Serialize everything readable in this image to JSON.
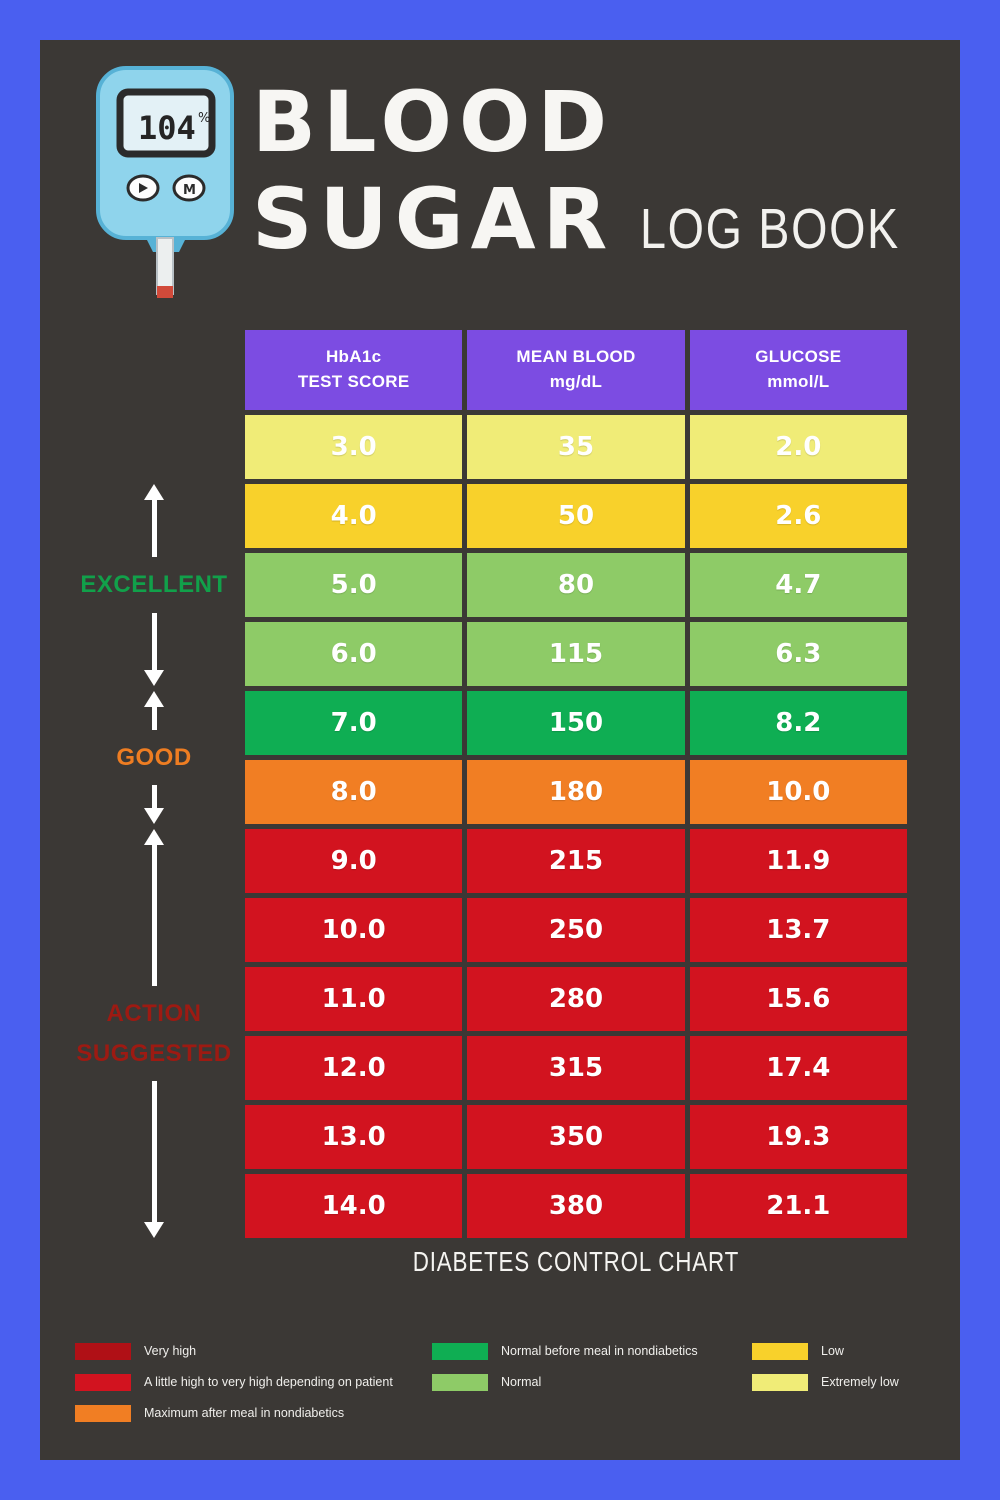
{
  "title": {
    "line1": "BLOOD",
    "line2": "SUGAR",
    "suffix": "LOG BOOK"
  },
  "meter": {
    "display": "104",
    "display_unit": "%"
  },
  "colors": {
    "frame_blue": "#4a5ff0",
    "panel_dark": "#3b3835",
    "header_purple": "#7c4ce2",
    "arrow_white": "#ffffff"
  },
  "side_scale": [
    {
      "label": "EXCELLENT",
      "lines": [
        "EXCELLENT"
      ],
      "color": "#11a04a"
    },
    {
      "label": "GOOD",
      "lines": [
        "GOOD"
      ],
      "color": "#ee7d22"
    },
    {
      "label": "ACTION SUGGESTED",
      "lines": [
        "ACTION",
        "SUGGESTED"
      ],
      "color": "#9d1a12"
    }
  ],
  "chart_data": {
    "type": "table",
    "title": "DIABETES CONTROL CHART",
    "columns": [
      {
        "line1": "HbA1c",
        "line2": "TEST SCORE"
      },
      {
        "line1": "MEAN BLOOD",
        "line2": "mg/dL"
      },
      {
        "line1": "GLUCOSE",
        "line2": "mmol/L"
      }
    ],
    "rows": [
      {
        "hba1c": "3.0",
        "mean_blood": "35",
        "glucose": "2.0",
        "band": "extremely-low",
        "color": "#f0ec77"
      },
      {
        "hba1c": "4.0",
        "mean_blood": "50",
        "glucose": "2.6",
        "band": "low",
        "color": "#f8d12b"
      },
      {
        "hba1c": "5.0",
        "mean_blood": "80",
        "glucose": "4.7",
        "band": "normal",
        "color": "#8ecb67"
      },
      {
        "hba1c": "6.0",
        "mean_blood": "115",
        "glucose": "6.3",
        "band": "normal",
        "color": "#8ecb67"
      },
      {
        "hba1c": "7.0",
        "mean_blood": "150",
        "glucose": "8.2",
        "band": "normal-before-meal",
        "color": "#0fae53"
      },
      {
        "hba1c": "8.0",
        "mean_blood": "180",
        "glucose": "10.0",
        "band": "maximum-after-meal",
        "color": "#f17e23"
      },
      {
        "hba1c": "9.0",
        "mean_blood": "215",
        "glucose": "11.9",
        "band": "high",
        "color": "#d2131f"
      },
      {
        "hba1c": "10.0",
        "mean_blood": "250",
        "glucose": "13.7",
        "band": "high",
        "color": "#d2131f"
      },
      {
        "hba1c": "11.0",
        "mean_blood": "280",
        "glucose": "15.6",
        "band": "high",
        "color": "#d2131f"
      },
      {
        "hba1c": "12.0",
        "mean_blood": "315",
        "glucose": "17.4",
        "band": "high",
        "color": "#d2131f"
      },
      {
        "hba1c": "13.0",
        "mean_blood": "350",
        "glucose": "19.3",
        "band": "high",
        "color": "#d2131f"
      },
      {
        "hba1c": "14.0",
        "mean_blood": "380",
        "glucose": "21.1",
        "band": "high",
        "color": "#d2131f"
      }
    ]
  },
  "legend": {
    "groups": [
      {
        "items": [
          {
            "color": "#b01016",
            "label": "Very high"
          },
          {
            "color": "#d2131f",
            "label": "A little high to very high depending on patient"
          },
          {
            "color": "#f17e23",
            "label": "Maximum after meal in nondiabetics"
          }
        ]
      },
      {
        "items": [
          {
            "color": "#0fae53",
            "label": "Normal before meal in nondiabetics"
          },
          {
            "color": "#8ecb67",
            "label": "Normal"
          }
        ]
      },
      {
        "items": [
          {
            "color": "#f8d12b",
            "label": "Low"
          },
          {
            "color": "#f0ec77",
            "label": "Extremely low"
          }
        ]
      }
    ]
  }
}
